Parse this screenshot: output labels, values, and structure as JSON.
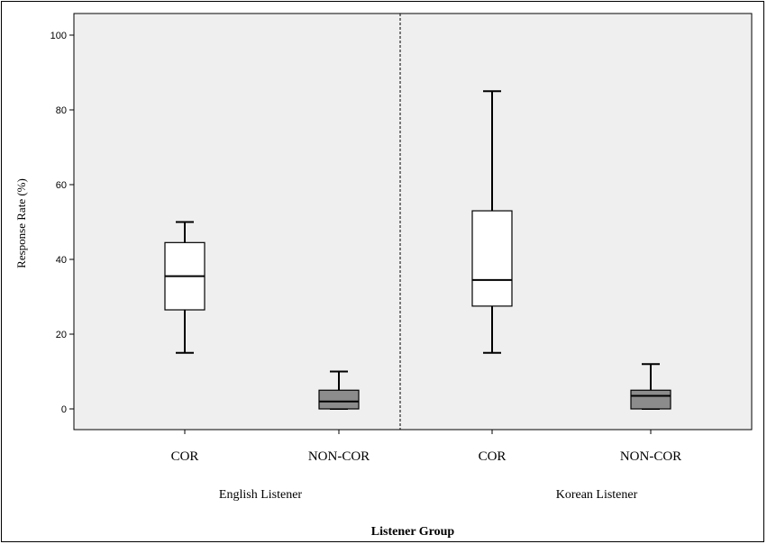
{
  "chart_data": {
    "type": "box",
    "title": "",
    "ylabel": "Response Rate (%)",
    "xlabel": "Listener Group",
    "ylim": [
      -5,
      105
    ],
    "yticks": [
      0,
      20,
      40,
      60,
      80,
      100
    ],
    "grid": false,
    "groups": [
      {
        "label": "English Listener",
        "boxes": [
          {
            "category": "COR",
            "min": 15,
            "q1": 26.5,
            "median": 35.5,
            "q3": 44.5,
            "max": 50,
            "fill": "#ffffff"
          },
          {
            "category": "NON-COR",
            "min": 0,
            "q1": 0,
            "median": 2,
            "q3": 5,
            "max": 10,
            "fill": "#8c8c8c"
          }
        ]
      },
      {
        "label": "Korean Listener",
        "boxes": [
          {
            "category": "COR",
            "min": 15,
            "q1": 27.5,
            "median": 34.5,
            "q3": 53,
            "max": 85,
            "fill": "#ffffff"
          },
          {
            "category": "NON-COR",
            "min": 0,
            "q1": 0,
            "median": 3.5,
            "q3": 5,
            "max": 12,
            "fill": "#8c8c8c"
          }
        ]
      }
    ],
    "plot_background": "#efefef"
  }
}
